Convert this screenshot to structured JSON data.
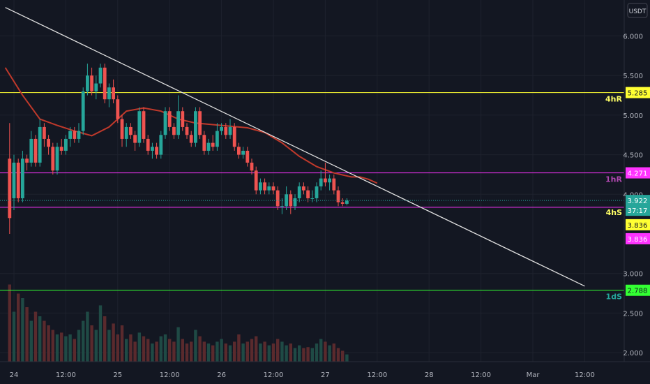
{
  "chart_data": {
    "type": "candlestick",
    "currency": "USDT",
    "y_ticks": [
      "6.000",
      "5.500",
      "5.000",
      "4.500",
      "4.000",
      "3.000",
      "2.500",
      "2.000"
    ],
    "y_tick_values": [
      6.0,
      5.5,
      5.0,
      4.5,
      4.0,
      3.0,
      2.5,
      2.0
    ],
    "x_tick_labels": [
      "24",
      "12:00",
      "25",
      "12:00",
      "26",
      "12:00",
      "27",
      "12:00",
      "28",
      "12:00",
      "Mar",
      "12:00"
    ],
    "x_tick_hours": [
      0,
      12,
      24,
      36,
      48,
      60,
      72,
      84,
      96,
      108,
      120,
      132
    ],
    "ylim": [
      1.9,
      6.4
    ],
    "grid": true,
    "levels": [
      {
        "name": "4hR",
        "value": 5.285,
        "label": "5.285",
        "color": "#ffff33",
        "text_color": "#ffff66"
      },
      {
        "name": "1hR",
        "value": 4.271,
        "label": "4.271",
        "color": "#ff33ff",
        "text_color": "#b048b0"
      },
      {
        "name": "4hS",
        "value": 3.836,
        "label": "3.836",
        "color": "#ff33ff",
        "text_color": "#ffff66"
      },
      {
        "name": "1dS",
        "value": 2.788,
        "label": "2.788",
        "color": "#33ff33",
        "text_color": "#26a69a"
      }
    ],
    "extra_level_tag": {
      "label": "3.836",
      "bg": "#ffff33"
    },
    "last_price": {
      "value": 3.922,
      "label": "3.922",
      "countdown": "37:17",
      "color": "#26a69a"
    },
    "trendline": {
      "start": {
        "hour": -2,
        "price": 6.36
      },
      "end": {
        "hour": 132,
        "price": 2.84
      },
      "color": "#e0e0e0"
    },
    "ma_color": "#c0392b",
    "up_color": "#26a69a",
    "down_color": "#ef5350",
    "ma": [
      [
        -2,
        5.6
      ],
      [
        2,
        5.25
      ],
      [
        6,
        4.95
      ],
      [
        10,
        4.87
      ],
      [
        14,
        4.8
      ],
      [
        18,
        4.74
      ],
      [
        22,
        4.85
      ],
      [
        26,
        5.05
      ],
      [
        30,
        5.09
      ],
      [
        34,
        5.05
      ],
      [
        38,
        4.95
      ],
      [
        42,
        4.9
      ],
      [
        46,
        4.88
      ],
      [
        50,
        4.86
      ],
      [
        54,
        4.84
      ],
      [
        58,
        4.78
      ],
      [
        62,
        4.65
      ],
      [
        66,
        4.48
      ],
      [
        70,
        4.35
      ],
      [
        74,
        4.27
      ],
      [
        78,
        4.22
      ],
      [
        80,
        4.22
      ],
      [
        82,
        4.19
      ],
      [
        84,
        4.14
      ]
    ],
    "candles": [
      [
        -1,
        4.45,
        3.7,
        4.9,
        3.5
      ],
      [
        0,
        3.95,
        4.4,
        4.5,
        3.8
      ],
      [
        1,
        4.4,
        3.95,
        4.45,
        3.9
      ],
      [
        2,
        3.95,
        4.45,
        4.55,
        3.9
      ],
      [
        3,
        4.45,
        4.4,
        4.5,
        4.3
      ],
      [
        4,
        4.4,
        4.7,
        4.8,
        4.35
      ],
      [
        5,
        4.7,
        4.4,
        4.75,
        4.35
      ],
      [
        6,
        4.4,
        4.85,
        4.95,
        4.35
      ],
      [
        7,
        4.85,
        4.7,
        4.9,
        4.6
      ],
      [
        8,
        4.7,
        4.6,
        4.75,
        4.5
      ],
      [
        9,
        4.6,
        4.3,
        4.65,
        4.25
      ],
      [
        10,
        4.3,
        4.6,
        4.65,
        4.25
      ],
      [
        11,
        4.6,
        4.55,
        4.7,
        4.5
      ],
      [
        12,
        4.55,
        4.7,
        4.75,
        4.5
      ],
      [
        13,
        4.7,
        4.8,
        4.85,
        4.6
      ],
      [
        14,
        4.8,
        4.7,
        4.85,
        4.65
      ],
      [
        15,
        4.7,
        4.8,
        4.9,
        4.65
      ],
      [
        16,
        4.8,
        5.3,
        5.35,
        4.75
      ],
      [
        17,
        5.3,
        5.5,
        5.65,
        5.25
      ],
      [
        18,
        5.5,
        5.3,
        5.6,
        5.25
      ],
      [
        19,
        5.3,
        5.4,
        5.5,
        5.2
      ],
      [
        20,
        5.4,
        5.6,
        5.65,
        5.35
      ],
      [
        21,
        5.6,
        5.2,
        5.65,
        5.15
      ],
      [
        22,
        5.2,
        5.35,
        5.4,
        5.1
      ],
      [
        23,
        5.35,
        5.2,
        5.45,
        5.15
      ],
      [
        24,
        5.2,
        4.95,
        5.25,
        4.9
      ],
      [
        25,
        4.95,
        4.7,
        5.0,
        4.6
      ],
      [
        26,
        4.7,
        4.85,
        4.9,
        4.6
      ],
      [
        27,
        4.85,
        4.75,
        4.9,
        4.7
      ],
      [
        28,
        4.75,
        4.65,
        4.8,
        4.55
      ],
      [
        29,
        4.65,
        5.05,
        5.1,
        4.6
      ],
      [
        30,
        5.05,
        4.7,
        5.1,
        4.65
      ],
      [
        31,
        4.7,
        4.55,
        4.75,
        4.5
      ],
      [
        32,
        4.55,
        4.6,
        4.65,
        4.45
      ],
      [
        33,
        4.6,
        4.5,
        4.65,
        4.45
      ],
      [
        34,
        4.5,
        4.75,
        4.8,
        4.45
      ],
      [
        35,
        4.75,
        5.05,
        5.1,
        4.7
      ],
      [
        36,
        5.05,
        4.85,
        5.1,
        4.8
      ],
      [
        37,
        4.85,
        4.75,
        4.9,
        4.7
      ],
      [
        38,
        4.75,
        5.05,
        5.25,
        4.7
      ],
      [
        39,
        5.05,
        4.85,
        5.1,
        4.8
      ],
      [
        40,
        4.85,
        4.75,
        4.9,
        4.7
      ],
      [
        41,
        4.75,
        4.65,
        4.8,
        4.6
      ],
      [
        42,
        4.65,
        5.05,
        5.1,
        4.6
      ],
      [
        43,
        5.05,
        4.75,
        5.1,
        4.7
      ],
      [
        44,
        4.75,
        4.55,
        4.8,
        4.5
      ],
      [
        45,
        4.55,
        4.65,
        4.7,
        4.5
      ],
      [
        46,
        4.65,
        4.6,
        4.75,
        4.55
      ],
      [
        47,
        4.6,
        4.8,
        4.9,
        4.55
      ],
      [
        48,
        4.8,
        4.85,
        4.9,
        4.75
      ],
      [
        49,
        4.85,
        4.75,
        4.9,
        4.7
      ],
      [
        50,
        4.75,
        4.85,
        4.95,
        4.7
      ],
      [
        51,
        4.85,
        4.6,
        4.9,
        4.55
      ],
      [
        52,
        4.6,
        4.5,
        4.65,
        4.45
      ],
      [
        53,
        4.5,
        4.55,
        4.6,
        4.45
      ],
      [
        54,
        4.55,
        4.4,
        4.6,
        4.35
      ],
      [
        55,
        4.4,
        4.3,
        4.45,
        4.25
      ],
      [
        56,
        4.3,
        4.05,
        4.35,
        4.0
      ],
      [
        57,
        4.05,
        4.15,
        4.2,
        4.0
      ],
      [
        58,
        4.15,
        4.05,
        4.2,
        4.0
      ],
      [
        59,
        4.05,
        4.1,
        4.15,
        4.0
      ],
      [
        60,
        4.1,
        4.05,
        4.15,
        4.0
      ],
      [
        61,
        4.05,
        3.85,
        4.1,
        3.8
      ],
      [
        62,
        3.85,
        3.85,
        3.95,
        3.75
      ],
      [
        63,
        3.85,
        4.0,
        4.1,
        3.8
      ],
      [
        64,
        4.0,
        3.85,
        4.05,
        3.75
      ],
      [
        65,
        3.85,
        3.95,
        4.0,
        3.8
      ],
      [
        66,
        3.95,
        4.1,
        4.15,
        3.9
      ],
      [
        67,
        4.1,
        4.05,
        4.15,
        4.0
      ],
      [
        68,
        4.05,
        3.95,
        4.1,
        3.9
      ],
      [
        69,
        3.95,
        3.95,
        4.05,
        3.9
      ],
      [
        70,
        3.95,
        4.1,
        4.15,
        3.9
      ],
      [
        71,
        4.1,
        4.2,
        4.3,
        4.05
      ],
      [
        72,
        4.2,
        4.15,
        4.4,
        4.1
      ],
      [
        73,
        4.15,
        4.2,
        4.25,
        4.05
      ],
      [
        74,
        4.2,
        4.05,
        4.25,
        4.0
      ],
      [
        75,
        4.05,
        3.9,
        4.1,
        3.85
      ],
      [
        76,
        3.9,
        3.88,
        3.95,
        3.85
      ],
      [
        77,
        3.88,
        3.92,
        3.95,
        3.86
      ]
    ],
    "volumes": [
      [
        -1,
        0.85
      ],
      [
        0,
        0.55
      ],
      [
        1,
        0.75
      ],
      [
        2,
        0.7
      ],
      [
        3,
        0.6
      ],
      [
        4,
        0.45
      ],
      [
        5,
        0.55
      ],
      [
        6,
        0.5
      ],
      [
        7,
        0.45
      ],
      [
        8,
        0.4
      ],
      [
        9,
        0.35
      ],
      [
        10,
        0.3
      ],
      [
        11,
        0.32
      ],
      [
        12,
        0.28
      ],
      [
        13,
        0.3
      ],
      [
        14,
        0.25
      ],
      [
        15,
        0.35
      ],
      [
        16,
        0.45
      ],
      [
        17,
        0.55
      ],
      [
        18,
        0.4
      ],
      [
        19,
        0.35
      ],
      [
        20,
        0.62
      ],
      [
        21,
        0.5
      ],
      [
        22,
        0.35
      ],
      [
        23,
        0.42
      ],
      [
        24,
        0.3
      ],
      [
        25,
        0.4
      ],
      [
        26,
        0.25
      ],
      [
        27,
        0.3
      ],
      [
        28,
        0.22
      ],
      [
        29,
        0.32
      ],
      [
        30,
        0.28
      ],
      [
        31,
        0.25
      ],
      [
        32,
        0.2
      ],
      [
        33,
        0.22
      ],
      [
        34,
        0.28
      ],
      [
        35,
        0.3
      ],
      [
        36,
        0.25
      ],
      [
        37,
        0.22
      ],
      [
        38,
        0.38
      ],
      [
        39,
        0.25
      ],
      [
        40,
        0.2
      ],
      [
        41,
        0.22
      ],
      [
        42,
        0.35
      ],
      [
        43,
        0.28
      ],
      [
        44,
        0.22
      ],
      [
        45,
        0.2
      ],
      [
        46,
        0.18
      ],
      [
        47,
        0.22
      ],
      [
        48,
        0.25
      ],
      [
        49,
        0.2
      ],
      [
        50,
        0.18
      ],
      [
        51,
        0.22
      ],
      [
        52,
        0.3
      ],
      [
        53,
        0.2
      ],
      [
        54,
        0.22
      ],
      [
        55,
        0.25
      ],
      [
        56,
        0.28
      ],
      [
        57,
        0.2
      ],
      [
        58,
        0.22
      ],
      [
        59,
        0.18
      ],
      [
        60,
        0.2
      ],
      [
        61,
        0.25
      ],
      [
        62,
        0.22
      ],
      [
        63,
        0.18
      ],
      [
        64,
        0.2
      ],
      [
        65,
        0.15
      ],
      [
        66,
        0.18
      ],
      [
        67,
        0.15
      ],
      [
        68,
        0.16
      ],
      [
        69,
        0.15
      ],
      [
        70,
        0.2
      ],
      [
        71,
        0.25
      ],
      [
        72,
        0.22
      ],
      [
        73,
        0.18
      ],
      [
        74,
        0.2
      ],
      [
        75,
        0.15
      ],
      [
        76,
        0.12
      ],
      [
        77,
        0.08
      ]
    ]
  }
}
